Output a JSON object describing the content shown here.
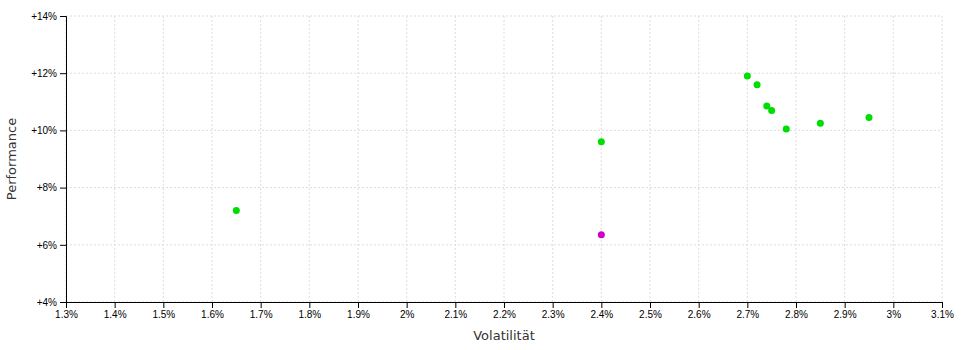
{
  "chart_data": {
    "type": "scatter",
    "x_label": "Volatilität",
    "y_label": "Performance",
    "xlim": [
      0.013,
      0.031
    ],
    "ylim": [
      0.04,
      0.14
    ],
    "xticks": [
      {
        "value": 0.013,
        "label": "1.3%"
      },
      {
        "value": 0.014,
        "label": "1.4%"
      },
      {
        "value": 0.015,
        "label": "1.5%"
      },
      {
        "value": 0.016,
        "label": "1.6%"
      },
      {
        "value": 0.017,
        "label": "1.7%"
      },
      {
        "value": 0.018,
        "label": "1.8%"
      },
      {
        "value": 0.019,
        "label": "1.9%"
      },
      {
        "value": 0.02,
        "label": "2%"
      },
      {
        "value": 0.021,
        "label": "2.1%"
      },
      {
        "value": 0.022,
        "label": "2.2%"
      },
      {
        "value": 0.023,
        "label": "2.3%"
      },
      {
        "value": 0.024,
        "label": "2.4%"
      },
      {
        "value": 0.025,
        "label": "2.5%"
      },
      {
        "value": 0.026,
        "label": "2.6%"
      },
      {
        "value": 0.027,
        "label": "2.7%"
      },
      {
        "value": 0.028,
        "label": "2.8%"
      },
      {
        "value": 0.029,
        "label": "2.9%"
      },
      {
        "value": 0.03,
        "label": "3%"
      },
      {
        "value": 0.031,
        "label": "3.1%"
      }
    ],
    "yticks": [
      {
        "value": 0.04,
        "label": "+4%"
      },
      {
        "value": 0.06,
        "label": "+6%"
      },
      {
        "value": 0.08,
        "label": "+8%"
      },
      {
        "value": 0.1,
        "label": "+10%"
      },
      {
        "value": 0.12,
        "label": "+12%"
      },
      {
        "value": 0.14,
        "label": "+14%"
      }
    ],
    "grid": true,
    "series": [
      {
        "color": "#00dd00",
        "x": [
          0.0165,
          0.024,
          0.027,
          0.0272,
          0.0274,
          0.0275,
          0.0278,
          0.0285,
          0.0295
        ],
        "values": [
          0.072,
          0.096,
          0.119,
          0.116,
          0.1085,
          0.107,
          0.1005,
          0.1025,
          0.1045
        ]
      },
      {
        "color": "#cc00cc",
        "x": [
          0.024
        ],
        "values": [
          0.0635
        ]
      }
    ]
  }
}
